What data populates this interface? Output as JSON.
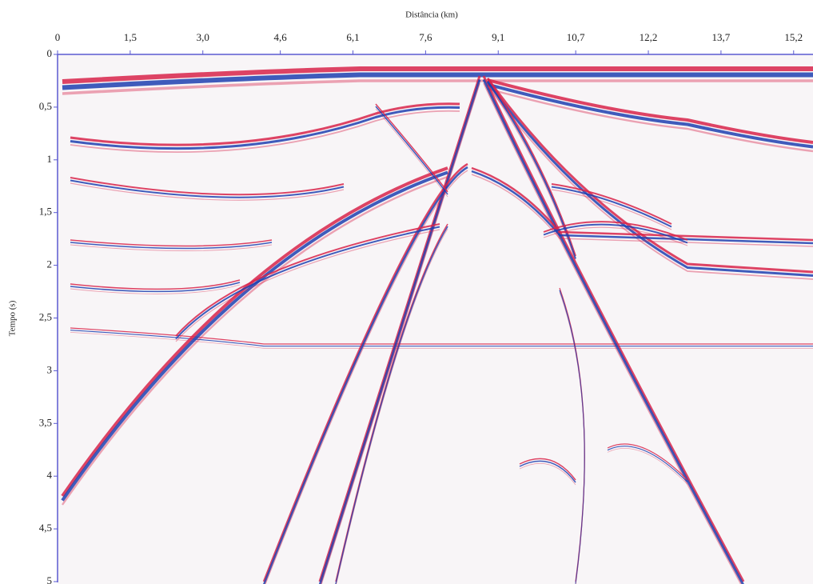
{
  "chart_data": {
    "type": "seismic-section",
    "title": "Distância (km)",
    "y_label": "Tempo (s)",
    "xlim": [
      0,
      15.6
    ],
    "xticks": [
      0,
      {
        "value": 1.5,
        "label": "1,5"
      },
      {
        "value": 3,
        "label": "3,0"
      },
      {
        "value": 4.6,
        "label": "4,6"
      },
      {
        "value": 6.1,
        "label": "6,1"
      },
      {
        "value": 7.6,
        "label": "7,6"
      },
      {
        "value": 9.1,
        "label": "9,1"
      },
      {
        "value": 10.7,
        "label": "10,7"
      },
      {
        "value": 12.2,
        "label": "12,2"
      },
      {
        "value": 13.7,
        "label": "13,7"
      },
      {
        "value": 15.2,
        "label": "15,2"
      }
    ],
    "ylim": [
      0,
      5
    ],
    "yticks": [
      0,
      {
        "value": 0.5,
        "label": "0,5"
      },
      1,
      {
        "value": 1.5,
        "label": "1,5"
      },
      2,
      {
        "value": 2.5,
        "label": "2,5"
      },
      3,
      {
        "value": 3.5,
        "label": "3,5"
      },
      4,
      {
        "value": 4.5,
        "label": "4,5"
      },
      5
    ],
    "y_inverted": true,
    "colors": [
      "#d8234a",
      "#1f3fb0"
    ]
  }
}
